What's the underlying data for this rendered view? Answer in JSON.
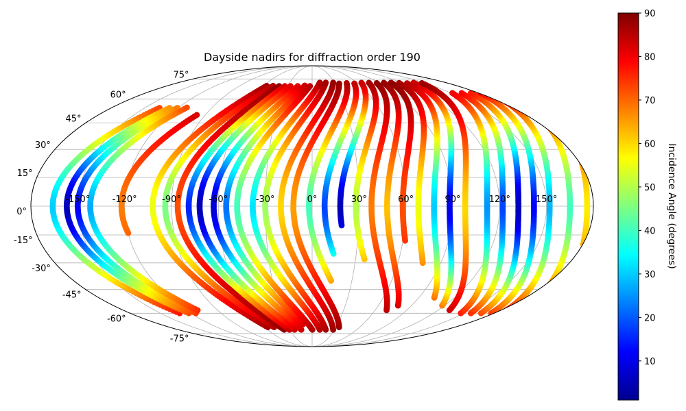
{
  "chart_data": {
    "type": "scatter",
    "projection": "mollweide",
    "title": "Dayside nadirs for diffraction order 190",
    "xlabel": "",
    "ylabel": "",
    "grid": true,
    "lon_ticks": [
      "-150°",
      "-120°",
      "-90°",
      "-60°",
      "-30°",
      "0°",
      "30°",
      "60°",
      "90°",
      "120°",
      "150°"
    ],
    "lat_ticks": [
      "75°",
      "60°",
      "45°",
      "30°",
      "15°",
      "0°",
      "-15°",
      "-30°",
      "-45°",
      "-60°",
      "-75°"
    ],
    "colorbar": {
      "label": "Incidence Angle (degrees)",
      "colormap": "jet",
      "range": [
        1,
        90
      ],
      "ticks": [
        "10",
        "20",
        "30",
        "40",
        "50",
        "60",
        "70",
        "80",
        "90"
      ]
    },
    "tracks": [
      {
        "lon_eq": -166,
        "lat_south": -60,
        "lat_north": 55,
        "inc_eq": 30
      },
      {
        "lon_eq": -157,
        "lat_south": -60,
        "lat_north": 55,
        "inc_eq": 5
      },
      {
        "lon_eq": -150,
        "lat_south": -60,
        "lat_north": 55,
        "inc_eq": 12
      },
      {
        "lon_eq": -142,
        "lat_south": -58,
        "lat_north": 55,
        "inc_eq": 27
      },
      {
        "lon_eq": -122,
        "lat_south": -14,
        "lat_north": 50,
        "inc_eq": 68
      },
      {
        "lon_eq": -102,
        "lat_south": -70,
        "lat_north": 70,
        "inc_eq": 55
      },
      {
        "lon_eq": -94,
        "lat_south": -70,
        "lat_north": 70,
        "inc_eq": 45
      },
      {
        "lon_eq": -86,
        "lat_south": -72,
        "lat_north": 70,
        "inc_eq": 72
      },
      {
        "lon_eq": -79,
        "lat_south": -72,
        "lat_north": 70,
        "inc_eq": 15
      },
      {
        "lon_eq": -72,
        "lat_south": -72,
        "lat_north": 70,
        "inc_eq": 5
      },
      {
        "lon_eq": -63,
        "lat_south": -72,
        "lat_north": 70,
        "inc_eq": 8
      },
      {
        "lon_eq": -55,
        "lat_south": -68,
        "lat_north": 70,
        "inc_eq": 22
      },
      {
        "lon_eq": -48,
        "lat_south": -72,
        "lat_north": 70,
        "inc_eq": 40
      },
      {
        "lon_eq": -38,
        "lat_south": -72,
        "lat_north": 72,
        "inc_eq": 32
      },
      {
        "lon_eq": -30,
        "lat_south": -72,
        "lat_north": 72,
        "inc_eq": 48
      },
      {
        "lon_eq": -20,
        "lat_south": -72,
        "lat_north": 72,
        "inc_eq": 60
      },
      {
        "lon_eq": -12,
        "lat_south": -70,
        "lat_north": 72,
        "inc_eq": 65
      },
      {
        "lon_eq": -2,
        "lat_south": -40,
        "lat_north": 72,
        "inc_eq": 40
      },
      {
        "lon_eq": 8,
        "lat_south": -25,
        "lat_north": 72,
        "inc_eq": 18
      },
      {
        "lon_eq": 18,
        "lat_south": -10,
        "lat_north": 72,
        "inc_eq": 5
      },
      {
        "lon_eq": 28,
        "lat_south": -28,
        "lat_north": 72,
        "inc_eq": 50
      },
      {
        "lon_eq": 38,
        "lat_south": -58,
        "lat_north": 72,
        "inc_eq": 68
      },
      {
        "lon_eq": 48,
        "lat_south": -55,
        "lat_north": 72,
        "inc_eq": 62
      },
      {
        "lon_eq": 58,
        "lat_south": -18,
        "lat_north": 72,
        "inc_eq": 72
      },
      {
        "lon_eq": 68,
        "lat_south": -30,
        "lat_north": 72,
        "inc_eq": 55
      },
      {
        "lon_eq": 78,
        "lat_south": -50,
        "lat_north": 72,
        "inc_eq": 30
      },
      {
        "lon_eq": 88,
        "lat_south": -55,
        "lat_north": 72,
        "inc_eq": 10
      },
      {
        "lon_eq": 98,
        "lat_south": -58,
        "lat_north": 72,
        "inc_eq": 60
      },
      {
        "lon_eq": 112,
        "lat_south": -60,
        "lat_north": 65,
        "inc_eq": 25
      },
      {
        "lon_eq": 122,
        "lat_south": -60,
        "lat_north": 65,
        "inc_eq": 18
      },
      {
        "lon_eq": 132,
        "lat_south": -60,
        "lat_north": 65,
        "inc_eq": 5
      },
      {
        "lon_eq": 142,
        "lat_south": -60,
        "lat_north": 65,
        "inc_eq": 12
      },
      {
        "lon_eq": 152,
        "lat_south": -58,
        "lat_north": 60,
        "inc_eq": 28
      },
      {
        "lon_eq": 165,
        "lat_south": -55,
        "lat_north": 55,
        "inc_eq": 40
      },
      {
        "lon_eq": 176,
        "lat_south": -20,
        "lat_north": 40,
        "inc_eq": 58
      }
    ]
  }
}
